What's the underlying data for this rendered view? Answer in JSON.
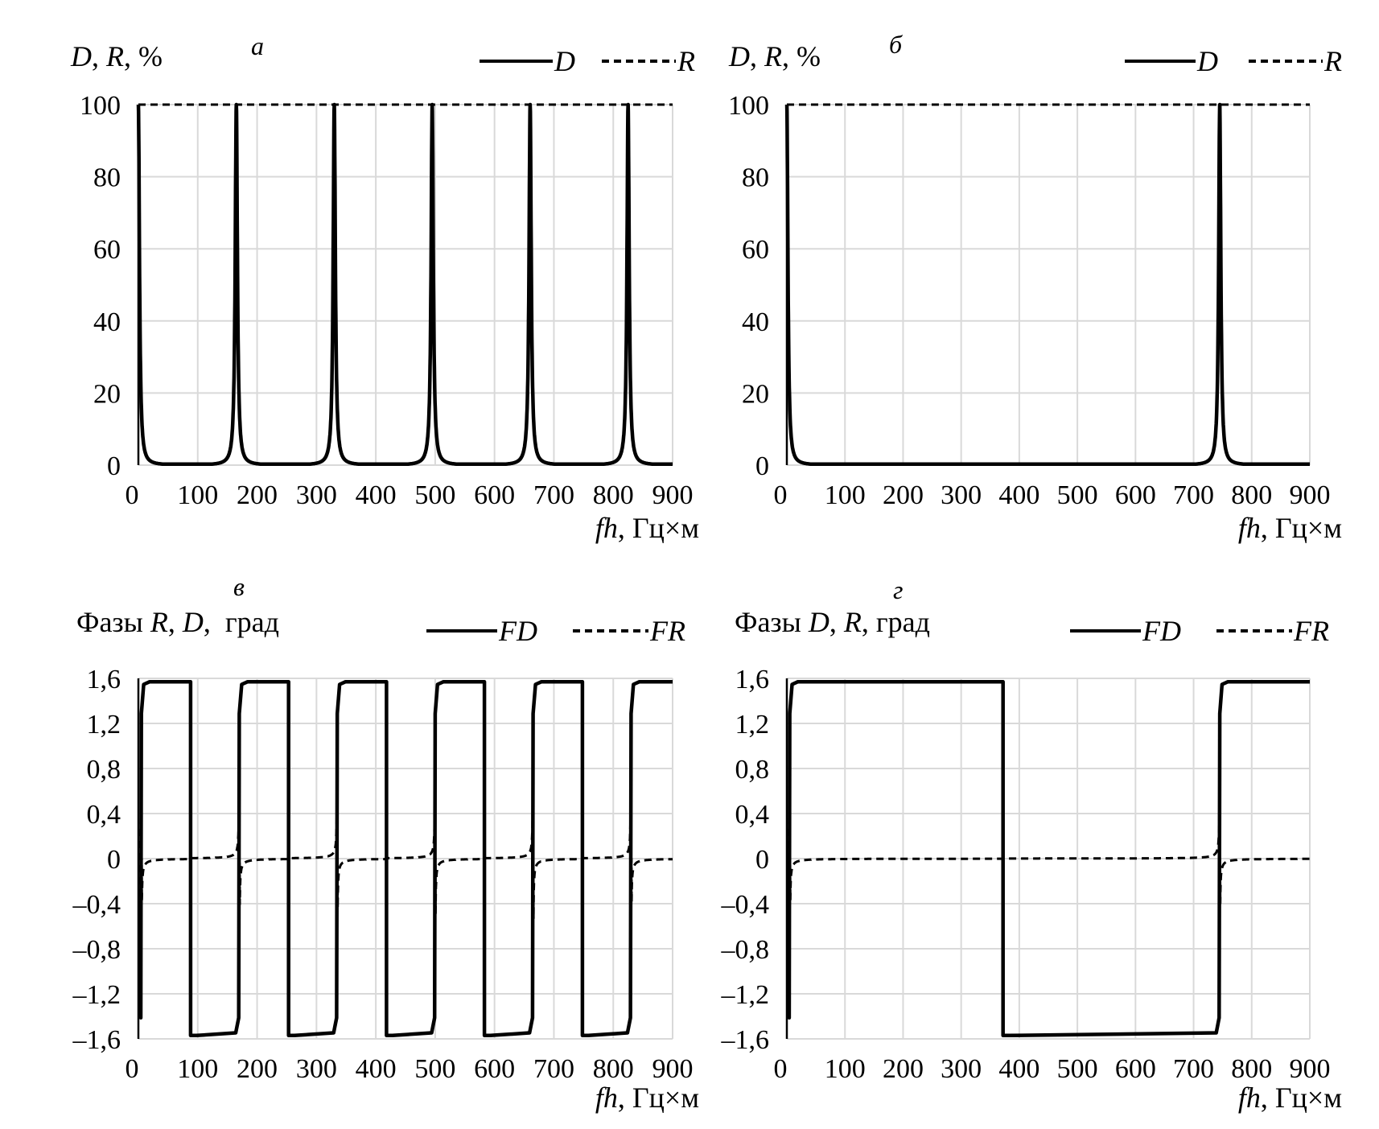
{
  "chart_data": [
    {
      "type": "line",
      "panel_label": "а",
      "ylabel": {
        "parts": [
          {
            "t": "D",
            "i": true
          },
          {
            "t": ", ",
            "i": false
          },
          {
            "t": "R",
            "i": true
          },
          {
            "t": ", %",
            "i": false
          }
        ]
      },
      "xlabel": {
        "parts": [
          {
            "t": "fh",
            "i": true
          },
          {
            "t": ", Гц×м",
            "i": false
          }
        ]
      },
      "xlim": [
        0,
        900
      ],
      "ylim": [
        0,
        100
      ],
      "xticks": [
        0,
        100,
        200,
        300,
        400,
        500,
        600,
        700,
        800,
        900
      ],
      "xtick_labels": [
        "0",
        "100",
        "200",
        "300",
        "400",
        "500",
        "600",
        "700",
        "800",
        "900"
      ],
      "yticks": [
        0,
        20,
        40,
        60,
        80,
        100
      ],
      "ytick_labels": [
        "0",
        "20",
        "40",
        "60",
        "80",
        "100"
      ],
      "grid": true,
      "legend_position": "top-right",
      "series": [
        {
          "name": "D",
          "style": "solid",
          "kind": "transmission",
          "peaks": [
            0,
            165,
            330,
            495,
            660,
            825
          ],
          "width": 2.2,
          "floor": 0.3
        },
        {
          "name": "R",
          "style": "dashed",
          "kind": "constant",
          "value": 100
        }
      ]
    },
    {
      "type": "line",
      "panel_label": "б",
      "ylabel": {
        "parts": [
          {
            "t": "D",
            "i": true
          },
          {
            "t": ", ",
            "i": false
          },
          {
            "t": "R",
            "i": true
          },
          {
            "t": ", %",
            "i": false
          }
        ]
      },
      "xlabel": {
        "parts": [
          {
            "t": "fh",
            "i": true
          },
          {
            "t": ", Гц×м",
            "i": false
          }
        ]
      },
      "xlim": [
        0,
        900
      ],
      "ylim": [
        0,
        100
      ],
      "xticks": [
        0,
        100,
        200,
        300,
        400,
        500,
        600,
        700,
        800,
        900
      ],
      "xtick_labels": [
        "0",
        "100",
        "200",
        "300",
        "400",
        "500",
        "600",
        "700",
        "800",
        "900"
      ],
      "yticks": [
        0,
        20,
        40,
        60,
        80,
        100
      ],
      "ytick_labels": [
        "0",
        "20",
        "40",
        "60",
        "80",
        "100"
      ],
      "grid": true,
      "legend_position": "top-right",
      "series": [
        {
          "name": "D",
          "style": "solid",
          "kind": "transmission",
          "peaks": [
            0,
            745
          ],
          "width": 2.2,
          "floor": 0.3
        },
        {
          "name": "R",
          "style": "dashed",
          "kind": "constant",
          "value": 100
        }
      ]
    },
    {
      "type": "line",
      "panel_label": "в",
      "ylabel": {
        "parts": [
          {
            "t": "Фазы ",
            "i": false
          },
          {
            "t": "R",
            "i": true
          },
          {
            "t": ", ",
            "i": false
          },
          {
            "t": "D",
            "i": true
          },
          {
            "t": ",  град",
            "i": false
          }
        ]
      },
      "xlabel": {
        "parts": [
          {
            "t": "fh",
            "i": true
          },
          {
            "t": ", Гц×м",
            "i": false
          }
        ]
      },
      "xlim": [
        0,
        900
      ],
      "ylim": [
        -1.6,
        1.6
      ],
      "xticks": [
        0,
        100,
        200,
        300,
        400,
        500,
        600,
        700,
        800,
        900
      ],
      "xtick_labels": [
        "0",
        "100",
        "200",
        "300",
        "400",
        "500",
        "600",
        "700",
        "800",
        "900"
      ],
      "yticks": [
        -1.6,
        -1.2,
        -0.8,
        -0.4,
        0,
        0.4,
        0.8,
        1.2,
        1.6
      ],
      "ytick_labels": [
        "–1,6",
        "–1,2",
        "–0,8",
        "–0,4",
        "0",
        "0,4",
        "0,8",
        "1,2",
        "1,6"
      ],
      "grid": true,
      "legend_position": "top-right",
      "series": [
        {
          "name": "FD",
          "style": "solid",
          "kind": "square",
          "high": 1.57,
          "low": -1.57,
          "start": -1.3,
          "rises": [
            5,
            170,
            335,
            500,
            665,
            830
          ],
          "drops": [
            88,
            253,
            418,
            583,
            748
          ]
        },
        {
          "name": "FR",
          "style": "dashed",
          "kind": "phaseR",
          "res": [
            5,
            170,
            335,
            500,
            665,
            830
          ],
          "start": -1.3,
          "amp": 0.4
        }
      ]
    },
    {
      "type": "line",
      "panel_label": "г",
      "ylabel": {
        "parts": [
          {
            "t": "Фазы ",
            "i": false
          },
          {
            "t": "D",
            "i": true
          },
          {
            "t": ", ",
            "i": false
          },
          {
            "t": "R",
            "i": true
          },
          {
            "t": ", град",
            "i": false
          }
        ]
      },
      "xlabel": {
        "parts": [
          {
            "t": "fh",
            "i": true
          },
          {
            "t": ", Гц×м",
            "i": false
          }
        ]
      },
      "xlim": [
        0,
        900
      ],
      "ylim": [
        -1.6,
        1.6
      ],
      "xticks": [
        0,
        100,
        200,
        300,
        400,
        500,
        600,
        700,
        800,
        900
      ],
      "xtick_labels": [
        "0",
        "100",
        "200",
        "300",
        "400",
        "500",
        "600",
        "700",
        "800",
        "900"
      ],
      "yticks": [
        -1.6,
        -1.2,
        -0.8,
        -0.4,
        0,
        0.4,
        0.8,
        1.2,
        1.6
      ],
      "ytick_labels": [
        "–1,6",
        "–1,2",
        "–0,8",
        "–0,4",
        "0",
        "0,4",
        "0,8",
        "1,2",
        "1,6"
      ],
      "grid": true,
      "legend_position": "top-right",
      "series": [
        {
          "name": "FD",
          "style": "solid",
          "kind": "square",
          "high": 1.57,
          "low": -1.57,
          "start": -1.3,
          "rises": [
            5,
            745
          ],
          "drops": [
            372
          ]
        },
        {
          "name": "FR",
          "style": "dashed",
          "kind": "phaseR",
          "res": [
            5,
            745
          ],
          "start": -1.3,
          "amp": 0.4
        }
      ]
    }
  ]
}
